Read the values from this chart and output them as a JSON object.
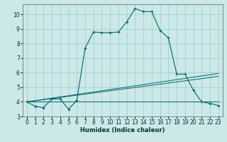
{
  "xlabel": "Humidex (Indice chaleur)",
  "bg_color": "#cce8e8",
  "grid_color": "#99cccc",
  "line_color": "#006666",
  "xlim": [
    -0.5,
    23.5
  ],
  "ylim": [
    3.0,
    10.7
  ],
  "xticks": [
    0,
    1,
    2,
    3,
    4,
    5,
    6,
    7,
    8,
    9,
    10,
    11,
    12,
    13,
    14,
    15,
    16,
    17,
    18,
    19,
    20,
    21,
    22,
    23
  ],
  "yticks": [
    3,
    4,
    5,
    6,
    7,
    8,
    9,
    10
  ],
  "curve1_x": [
    0,
    1,
    2,
    3,
    4,
    5,
    6,
    7,
    8,
    9,
    10,
    11,
    12,
    13,
    14,
    15,
    16,
    17,
    18,
    19,
    20,
    21,
    22,
    23
  ],
  "curve1_y": [
    4.0,
    3.7,
    3.6,
    4.2,
    4.2,
    3.5,
    4.1,
    7.7,
    8.8,
    8.75,
    8.75,
    8.8,
    9.5,
    10.4,
    10.2,
    10.2,
    8.9,
    8.4,
    5.9,
    5.9,
    4.8,
    4.0,
    3.9,
    3.75
  ],
  "line4_x": [
    0,
    18,
    23
  ],
  "line4_y": [
    4.0,
    4.0,
    4.0
  ]
}
